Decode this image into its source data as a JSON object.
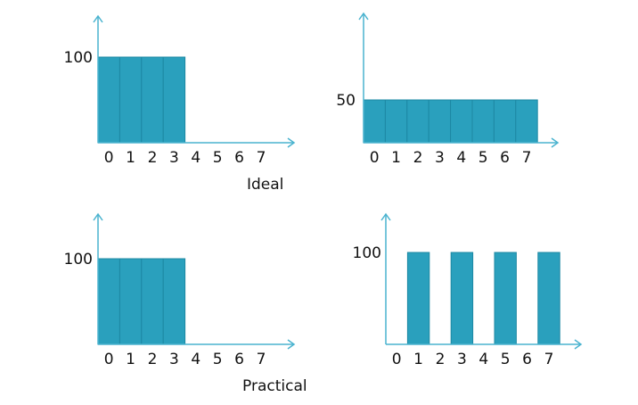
{
  "colors": {
    "bar": "#2aa0bd",
    "bar_edge": "#1d88a3",
    "axis": "#4ab3cf"
  },
  "captions": {
    "ideal": "Ideal",
    "practical": "Practical"
  },
  "chart_data": [
    {
      "type": "bar",
      "categories": [
        "0",
        "1",
        "2",
        "3",
        "4",
        "5",
        "6",
        "7"
      ],
      "values": [
        100,
        100,
        100,
        100,
        0,
        0,
        0,
        0
      ],
      "ytick_label": "100",
      "ytick_value": 100,
      "ylim": [
        0,
        150
      ],
      "grid": false
    },
    {
      "type": "bar",
      "categories": [
        "0",
        "1",
        "2",
        "3",
        "4",
        "5",
        "6",
        "7"
      ],
      "values": [
        50,
        50,
        50,
        50,
        50,
        50,
        50,
        50
      ],
      "ytick_label": "50",
      "ytick_value": 50,
      "ylim": [
        0,
        150
      ],
      "grid": false
    },
    {
      "type": "bar",
      "categories": [
        "0",
        "1",
        "2",
        "3",
        "4",
        "5",
        "6",
        "7"
      ],
      "values": [
        100,
        100,
        100,
        100,
        0,
        0,
        0,
        0
      ],
      "ytick_label": "100",
      "ytick_value": 100,
      "ylim": [
        0,
        150
      ],
      "grid": false
    },
    {
      "type": "bar",
      "categories": [
        "0",
        "1",
        "2",
        "3",
        "4",
        "5",
        "6",
        "7"
      ],
      "values": [
        0,
        100,
        0,
        100,
        0,
        100,
        0,
        100
      ],
      "ytick_label": "100",
      "ytick_value": 100,
      "ylim": [
        0,
        150
      ],
      "grid": false
    }
  ]
}
